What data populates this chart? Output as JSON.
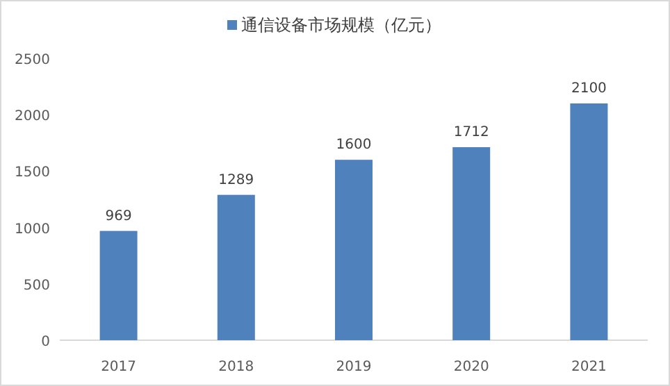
{
  "chart_data": {
    "type": "bar",
    "categories": [
      "2017",
      "2018",
      "2019",
      "2020",
      "2021"
    ],
    "series": [
      {
        "name": "通信设备市场规模（亿元）",
        "color": "#4f81bd",
        "values": [
          969,
          1289,
          1600,
          1712,
          2100
        ]
      }
    ],
    "ylim": [
      0,
      2500
    ],
    "yticks": [
      0,
      500,
      1000,
      1500,
      2000,
      2500
    ],
    "data_labels": true,
    "grid": false,
    "legend": "top"
  }
}
